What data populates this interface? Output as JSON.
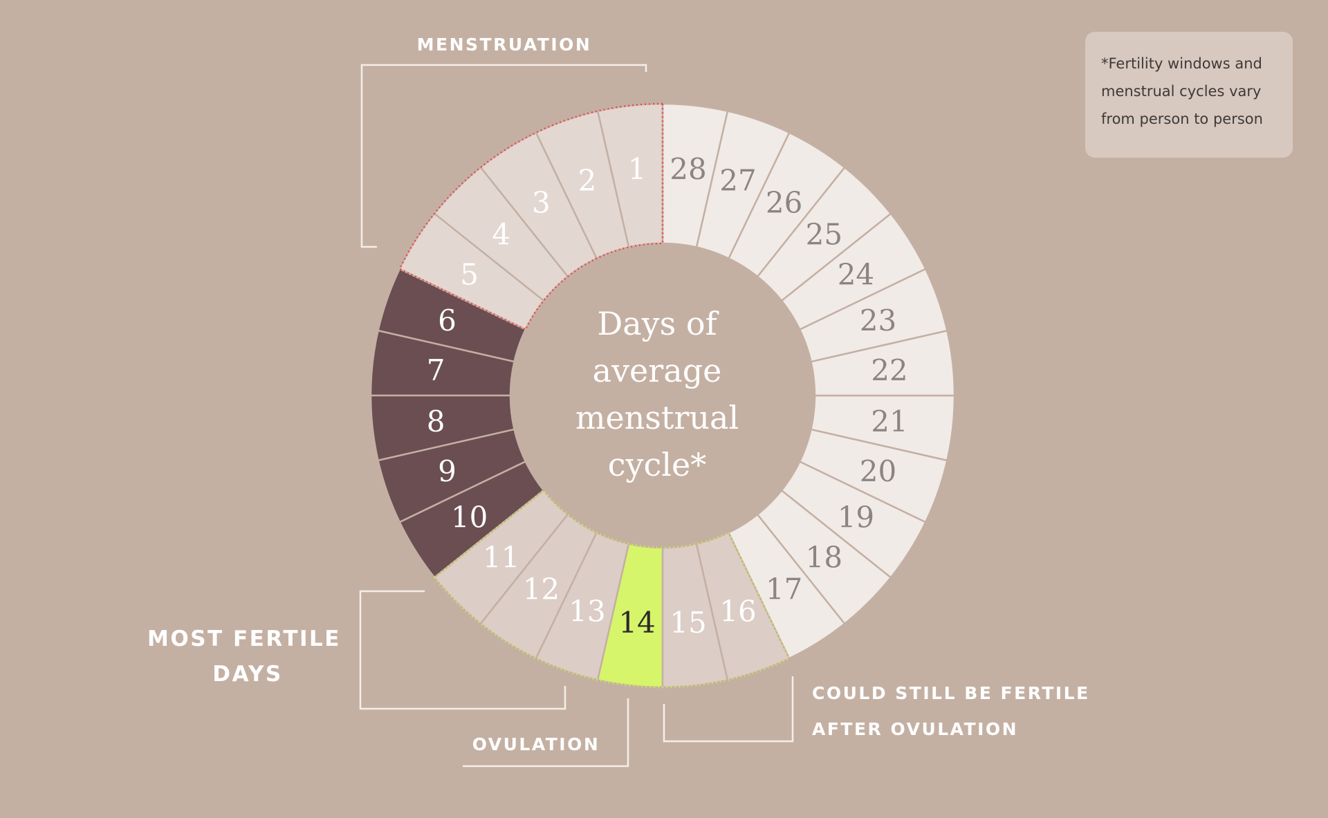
{
  "center_title_lines": [
    "Days of",
    "average",
    "menstrual",
    "cycle*"
  ],
  "labels": {
    "menstruation": "MENSTRUATION",
    "most_fertile_line1": "MOST FERTILE",
    "most_fertile_line2": "DAYS",
    "ovulation": "OVULATION",
    "after_ovulation_line1": "COULD STILL BE FERTILE",
    "after_ovulation_line2": "AFTER OVULATION"
  },
  "note": {
    "lines": [
      "*Fertility windows and",
      "menstrual cycles vary",
      "from person to person"
    ]
  },
  "days": [
    {
      "day": "1",
      "group": "menstruation"
    },
    {
      "day": "2",
      "group": "menstruation"
    },
    {
      "day": "3",
      "group": "menstruation"
    },
    {
      "day": "4",
      "group": "menstruation"
    },
    {
      "day": "5",
      "group": "menstruation"
    },
    {
      "day": "6",
      "group": "dark"
    },
    {
      "day": "7",
      "group": "dark"
    },
    {
      "day": "8",
      "group": "dark"
    },
    {
      "day": "9",
      "group": "dark"
    },
    {
      "day": "10",
      "group": "dark"
    },
    {
      "day": "11",
      "group": "fertile"
    },
    {
      "day": "12",
      "group": "fertile"
    },
    {
      "day": "13",
      "group": "fertile"
    },
    {
      "day": "14",
      "group": "ovulation"
    },
    {
      "day": "15",
      "group": "fertile"
    },
    {
      "day": "16",
      "group": "fertile"
    },
    {
      "day": "17",
      "group": "light"
    },
    {
      "day": "18",
      "group": "light"
    },
    {
      "day": "19",
      "group": "light"
    },
    {
      "day": "20",
      "group": "light"
    },
    {
      "day": "21",
      "group": "light"
    },
    {
      "day": "22",
      "group": "light"
    },
    {
      "day": "23",
      "group": "light"
    },
    {
      "day": "24",
      "group": "light"
    },
    {
      "day": "25",
      "group": "light"
    },
    {
      "day": "26",
      "group": "light"
    },
    {
      "day": "27",
      "group": "light"
    },
    {
      "day": "28",
      "group": "light"
    }
  ],
  "colors": {
    "background": "#c4b0a3",
    "menstruation": "#e3d7d1",
    "dark": "#6a4e52",
    "fertile": "#dccdc6",
    "ovulation": "#d6f56b",
    "light": "#f1ebe7",
    "menstruation_outline": "#e8474f",
    "fertile_outline": "#cfe05b",
    "bracket": "#f4eeea"
  }
}
